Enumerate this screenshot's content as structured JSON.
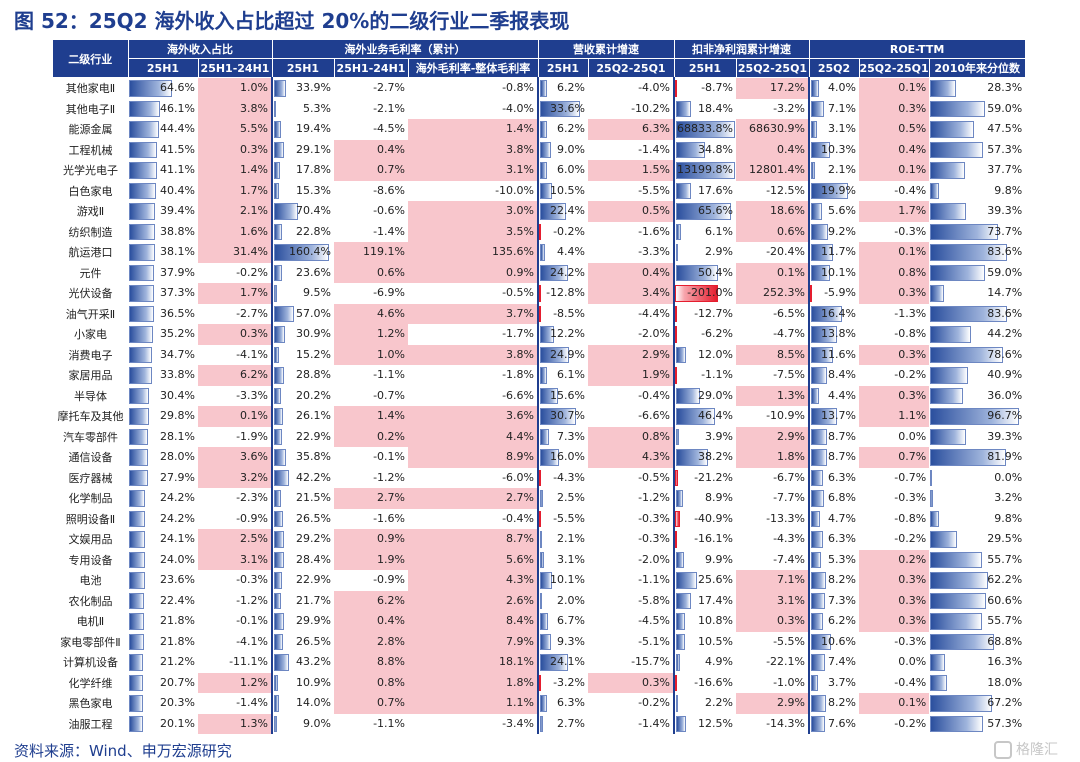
{
  "title": "图 52：25Q2 海外收入占比超过 20%的二级行业二季报表现",
  "source": "资料来源：Wind、申万宏源研究",
  "watermark": "格隆汇",
  "header": {
    "row1": [
      "二级行业",
      "海外收入占比",
      "海外业务毛利率（累计）",
      "营收累计增速",
      "扣非净利润累计增速",
      "ROE-TTM"
    ],
    "row2": [
      "25H1",
      "25H1-24H1",
      "25H1",
      "25H1-24H1",
      "海外毛利率-整体毛利率",
      "25H1",
      "25Q2-25Q1",
      "25H1",
      "25Q2-25Q1",
      "25Q2",
      "25Q2-25Q1",
      "2010年来分位数"
    ]
  },
  "rows": [
    [
      "其他家电Ⅱ",
      "64.6%",
      "1.0%",
      "33.9%",
      "-2.7%",
      "-0.8%",
      "6.2%",
      "-4.0%",
      "-8.7%",
      "17.2%",
      "4.0%",
      "0.1%",
      "28.3%"
    ],
    [
      "其他电子Ⅱ",
      "46.1%",
      "3.8%",
      "5.3%",
      "-2.1%",
      "-4.0%",
      "33.6%",
      "-10.2%",
      "18.4%",
      "-3.2%",
      "7.1%",
      "0.3%",
      "59.0%"
    ],
    [
      "能源金属",
      "44.4%",
      "5.5%",
      "19.4%",
      "-4.5%",
      "1.4%",
      "6.2%",
      "6.3%",
      "68833.8%",
      "68630.9%",
      "3.1%",
      "0.5%",
      "47.5%"
    ],
    [
      "工程机械",
      "41.5%",
      "0.3%",
      "29.1%",
      "0.4%",
      "3.8%",
      "9.0%",
      "-1.4%",
      "34.8%",
      "0.4%",
      "10.3%",
      "0.4%",
      "57.3%"
    ],
    [
      "光学光电子",
      "41.1%",
      "1.4%",
      "17.8%",
      "0.7%",
      "3.1%",
      "6.0%",
      "1.5%",
      "13199.8%",
      "12801.4%",
      "2.1%",
      "0.1%",
      "37.7%"
    ],
    [
      "白色家电",
      "40.4%",
      "1.7%",
      "15.3%",
      "-8.6%",
      "-10.0%",
      "10.5%",
      "-5.5%",
      "17.6%",
      "-12.5%",
      "19.9%",
      "-0.4%",
      "9.8%"
    ],
    [
      "游戏Ⅱ",
      "39.4%",
      "2.1%",
      "70.4%",
      "-0.6%",
      "3.0%",
      "22.4%",
      "0.5%",
      "65.6%",
      "18.6%",
      "5.6%",
      "1.7%",
      "39.3%"
    ],
    [
      "纺织制造",
      "38.8%",
      "1.6%",
      "22.8%",
      "-1.4%",
      "3.5%",
      "-0.2%",
      "-1.6%",
      "6.1%",
      "0.6%",
      "9.2%",
      "-0.3%",
      "73.7%"
    ],
    [
      "航运港口",
      "38.1%",
      "31.4%",
      "160.4%",
      "119.1%",
      "135.6%",
      "4.4%",
      "-3.3%",
      "2.9%",
      "-20.4%",
      "11.7%",
      "0.1%",
      "83.6%"
    ],
    [
      "元件",
      "37.9%",
      "-0.2%",
      "23.6%",
      "0.6%",
      "0.9%",
      "24.2%",
      "0.4%",
      "50.4%",
      "0.1%",
      "10.1%",
      "0.8%",
      "59.0%"
    ],
    [
      "光伏设备",
      "37.3%",
      "1.7%",
      "9.5%",
      "-6.9%",
      "-0.5%",
      "-12.8%",
      "3.4%",
      "-201.0%",
      "252.3%",
      "-5.9%",
      "0.3%",
      "14.7%"
    ],
    [
      "油气开采Ⅱ",
      "36.5%",
      "-2.7%",
      "57.0%",
      "4.6%",
      "3.7%",
      "-8.5%",
      "-4.4%",
      "-12.7%",
      "-6.5%",
      "16.4%",
      "-1.3%",
      "83.6%"
    ],
    [
      "小家电",
      "35.2%",
      "0.3%",
      "30.9%",
      "1.2%",
      "-1.7%",
      "12.2%",
      "-2.0%",
      "-6.2%",
      "-4.7%",
      "13.8%",
      "-0.8%",
      "44.2%"
    ],
    [
      "消费电子",
      "34.7%",
      "-4.1%",
      "15.2%",
      "1.0%",
      "3.8%",
      "24.9%",
      "2.9%",
      "12.0%",
      "8.5%",
      "11.6%",
      "0.3%",
      "78.6%"
    ],
    [
      "家居用品",
      "33.8%",
      "6.2%",
      "28.8%",
      "-1.1%",
      "-1.8%",
      "6.1%",
      "1.9%",
      "-1.1%",
      "-7.5%",
      "8.4%",
      "-0.2%",
      "40.9%"
    ],
    [
      "半导体",
      "30.4%",
      "-3.3%",
      "20.2%",
      "-0.7%",
      "-6.6%",
      "15.6%",
      "-0.4%",
      "29.0%",
      "1.3%",
      "4.4%",
      "0.3%",
      "36.0%"
    ],
    [
      "摩托车及其他",
      "29.8%",
      "0.1%",
      "26.1%",
      "1.4%",
      "3.6%",
      "30.7%",
      "-6.6%",
      "46.4%",
      "-10.9%",
      "13.7%",
      "1.1%",
      "96.7%"
    ],
    [
      "汽车零部件",
      "28.1%",
      "-1.9%",
      "22.9%",
      "0.2%",
      "4.4%",
      "7.3%",
      "0.8%",
      "3.9%",
      "2.9%",
      "8.7%",
      "0.0%",
      "39.3%"
    ],
    [
      "通信设备",
      "28.0%",
      "3.6%",
      "35.8%",
      "-0.1%",
      "8.9%",
      "16.0%",
      "4.3%",
      "38.2%",
      "1.8%",
      "8.7%",
      "0.7%",
      "81.9%"
    ],
    [
      "医疗器械",
      "27.9%",
      "3.2%",
      "42.2%",
      "-1.2%",
      "-6.0%",
      "-4.3%",
      "-0.5%",
      "-21.2%",
      "-6.7%",
      "6.3%",
      "-0.7%",
      "0.0%"
    ],
    [
      "化学制品",
      "24.2%",
      "-2.3%",
      "21.5%",
      "2.7%",
      "2.7%",
      "2.5%",
      "-1.2%",
      "8.9%",
      "-7.7%",
      "6.8%",
      "-0.3%",
      "3.2%"
    ],
    [
      "照明设备Ⅱ",
      "24.2%",
      "-0.9%",
      "26.5%",
      "-1.6%",
      "-0.4%",
      "-5.5%",
      "-0.3%",
      "-40.9%",
      "-13.3%",
      "4.7%",
      "-0.8%",
      "9.8%"
    ],
    [
      "文娱用品",
      "24.1%",
      "2.5%",
      "29.2%",
      "0.9%",
      "8.7%",
      "2.1%",
      "-0.3%",
      "-16.1%",
      "-4.3%",
      "6.3%",
      "-0.2%",
      "29.5%"
    ],
    [
      "专用设备",
      "24.0%",
      "3.1%",
      "28.4%",
      "1.9%",
      "5.6%",
      "3.1%",
      "-2.0%",
      "9.9%",
      "-7.4%",
      "5.3%",
      "0.2%",
      "55.7%"
    ],
    [
      "电池",
      "23.6%",
      "-0.3%",
      "22.9%",
      "-0.9%",
      "4.3%",
      "10.1%",
      "-1.1%",
      "25.6%",
      "7.1%",
      "8.2%",
      "0.3%",
      "62.2%"
    ],
    [
      "农化制品",
      "22.4%",
      "-1.2%",
      "21.7%",
      "6.2%",
      "2.6%",
      "2.0%",
      "-5.8%",
      "17.4%",
      "3.1%",
      "7.3%",
      "0.3%",
      "60.6%"
    ],
    [
      "电机Ⅱ",
      "21.8%",
      "-0.1%",
      "29.9%",
      "0.4%",
      "8.4%",
      "6.7%",
      "-4.5%",
      "10.8%",
      "0.3%",
      "6.2%",
      "0.3%",
      "55.7%"
    ],
    [
      "家电零部件Ⅱ",
      "21.8%",
      "-4.1%",
      "26.5%",
      "2.8%",
      "7.9%",
      "9.3%",
      "-5.1%",
      "10.5%",
      "-5.5%",
      "10.6%",
      "-0.3%",
      "68.8%"
    ],
    [
      "计算机设备",
      "21.2%",
      "-11.1%",
      "43.2%",
      "8.8%",
      "18.1%",
      "24.1%",
      "-15.7%",
      "4.9%",
      "-22.1%",
      "7.4%",
      "0.0%",
      "16.3%"
    ],
    [
      "化学纤维",
      "20.7%",
      "1.2%",
      "10.9%",
      "0.8%",
      "1.8%",
      "-3.2%",
      "0.3%",
      "-16.6%",
      "-1.0%",
      "3.7%",
      "-0.4%",
      "18.0%"
    ],
    [
      "黑色家电",
      "20.3%",
      "-1.4%",
      "14.0%",
      "0.7%",
      "1.1%",
      "6.3%",
      "-0.2%",
      "2.2%",
      "2.9%",
      "8.2%",
      "0.1%",
      "67.2%"
    ],
    [
      "油服工程",
      "20.1%",
      "1.3%",
      "9.0%",
      "-1.1%",
      "-3.4%",
      "2.7%",
      "-1.4%",
      "12.5%",
      "-14.3%",
      "7.6%",
      "-0.2%",
      "57.3%"
    ]
  ]
}
